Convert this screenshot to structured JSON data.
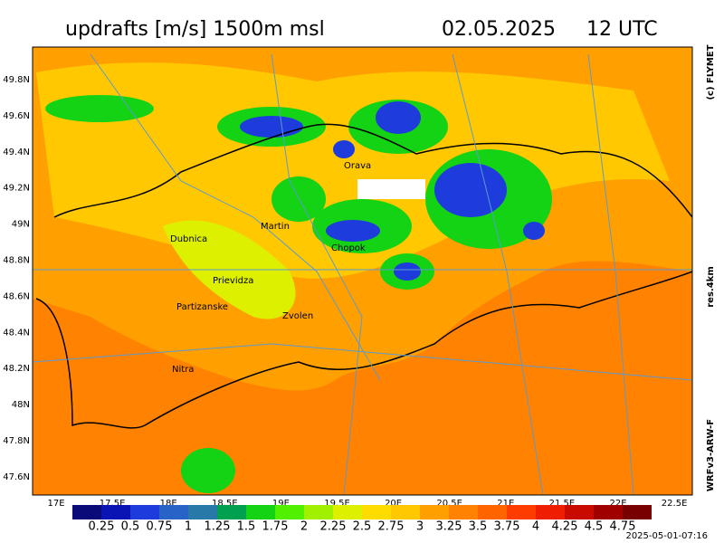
{
  "header": {
    "title": "updrafts [m/s] 1500m msl",
    "date": "02.05.2025",
    "time": "12 UTC"
  },
  "side": {
    "copyright": "(c) FLYMET",
    "resolution": "res.4km",
    "model": "WRFv3-ARW-F"
  },
  "footer": {
    "timestamp": "2025-05-01-07:16"
  },
  "map": {
    "lat_labels": [
      "49.8N",
      "49.6N",
      "49.4N",
      "49.2N",
      "49N",
      "48.8N",
      "48.6N",
      "48.4N",
      "48.2N",
      "48N",
      "47.8N",
      "47.6N"
    ],
    "lon_labels": [
      "17E",
      "17.5E",
      "18E",
      "18.5E",
      "19E",
      "19.5E",
      "20E",
      "20.5E",
      "21E",
      "21.5E",
      "22E",
      "22.5E"
    ],
    "places": [
      "Orava",
      "Martin",
      "Dubnica",
      "Chopok",
      "Prievidza",
      "Partizanske",
      "Zvolen",
      "Nitra"
    ]
  },
  "colorbar": {
    "labels": [
      "0.25",
      "0.5",
      "0.75",
      "1",
      "1.25",
      "1.5",
      "1.75",
      "2",
      "2.25",
      "2.5",
      "2.75",
      "3",
      "3.25",
      "3.5",
      "3.75",
      "4",
      "4.25",
      "4.5",
      "4.75"
    ],
    "colors": [
      "#0a0a78",
      "#0a14b4",
      "#1e3cdc",
      "#2864c8",
      "#2878a8",
      "#00a050",
      "#14d214",
      "#50f000",
      "#a0f000",
      "#dcf000",
      "#ffdc00",
      "#ffc800",
      "#ffa000",
      "#ff8200",
      "#ff6400",
      "#ff3c00",
      "#f01e00",
      "#c80a00",
      "#a00000",
      "#780000"
    ]
  }
}
